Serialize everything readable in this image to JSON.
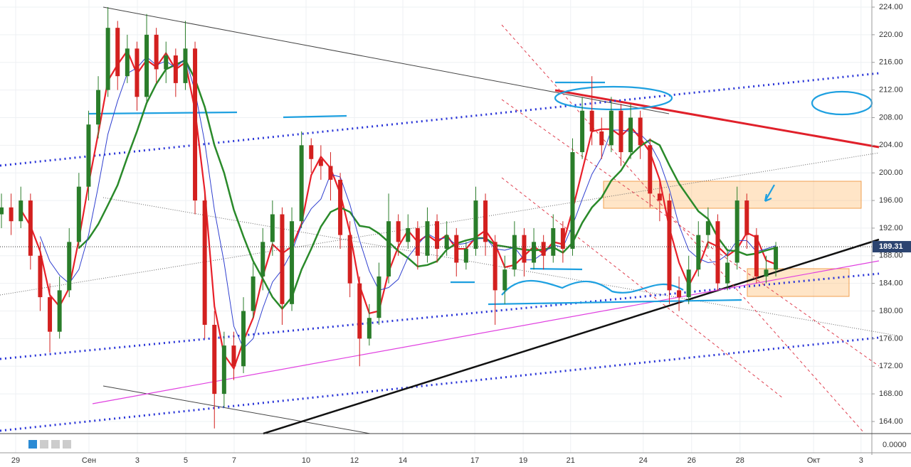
{
  "chart_data": {
    "type": "candlestick",
    "up_color": "#2a7d2a",
    "down_color": "#d3201f",
    "candles": [
      [
        194,
        197,
        192,
        195
      ],
      [
        195,
        197,
        191,
        193
      ],
      [
        193,
        198,
        192,
        196
      ],
      [
        196,
        197,
        186,
        188
      ],
      [
        188,
        190,
        180,
        182
      ],
      [
        182,
        184,
        174,
        177
      ],
      [
        177,
        185,
        176,
        183
      ],
      [
        183,
        192,
        182,
        190
      ],
      [
        190,
        200,
        189,
        198
      ],
      [
        198,
        209,
        196,
        207
      ],
      [
        207,
        214,
        205,
        212
      ],
      [
        212,
        224,
        211,
        221
      ],
      [
        221,
        222,
        212,
        214
      ],
      [
        214,
        220,
        213,
        218
      ],
      [
        218,
        219,
        209,
        211
      ],
      [
        211,
        223,
        210,
        220
      ],
      [
        220,
        221,
        213,
        215
      ],
      [
        215,
        219,
        213,
        217
      ],
      [
        217,
        218,
        211,
        213
      ],
      [
        213,
        222,
        212,
        218
      ],
      [
        218,
        219,
        194,
        196
      ],
      [
        196,
        197,
        176,
        178
      ],
      [
        178,
        180,
        163,
        168
      ],
      [
        168,
        177,
        166,
        175
      ],
      [
        175,
        177,
        170,
        172
      ],
      [
        172,
        182,
        171,
        180
      ],
      [
        180,
        187,
        179,
        185
      ],
      [
        185,
        192,
        183,
        190
      ],
      [
        190,
        196,
        188,
        194
      ],
      [
        194,
        195,
        178,
        181
      ],
      [
        181,
        195,
        180,
        193
      ],
      [
        193,
        206,
        192,
        204
      ],
      [
        204,
        205,
        200,
        202
      ],
      [
        202,
        204,
        199,
        201
      ],
      [
        201,
        203,
        196,
        199
      ],
      [
        199,
        200,
        189,
        191
      ],
      [
        191,
        193,
        182,
        184
      ],
      [
        184,
        185,
        172,
        176
      ],
      [
        176,
        181,
        175,
        179
      ],
      [
        179,
        187,
        178,
        185
      ],
      [
        185,
        197,
        184,
        193
      ],
      [
        193,
        194,
        188,
        190
      ],
      [
        190,
        194,
        189,
        192
      ],
      [
        192,
        193,
        186,
        188
      ],
      [
        188,
        195,
        187,
        193
      ],
      [
        193,
        194,
        187,
        189
      ],
      [
        189,
        193,
        188,
        191
      ],
      [
        191,
        192,
        185,
        187
      ],
      [
        187,
        190,
        186,
        189
      ],
      [
        189,
        198,
        188,
        196
      ],
      [
        196,
        197,
        188,
        190
      ],
      [
        190,
        191,
        178,
        183
      ],
      [
        183,
        188,
        181,
        186
      ],
      [
        186,
        193,
        185,
        191
      ],
      [
        191,
        192,
        185,
        187
      ],
      [
        187,
        192,
        186,
        190
      ],
      [
        190,
        191,
        186,
        188
      ],
      [
        188,
        194,
        187,
        192
      ],
      [
        192,
        193,
        187,
        189
      ],
      [
        189,
        205,
        188,
        203
      ],
      [
        203,
        211,
        202,
        209
      ],
      [
        209,
        214,
        204,
        206
      ],
      [
        206,
        208,
        202,
        204
      ],
      [
        204,
        211,
        203,
        209
      ],
      [
        209,
        210,
        201,
        203
      ],
      [
        203,
        210,
        202,
        208
      ],
      [
        208,
        209,
        202,
        204
      ],
      [
        204,
        205,
        195,
        197
      ],
      [
        197,
        199,
        193,
        196
      ],
      [
        196,
        197,
        181,
        183
      ],
      [
        183,
        185,
        180,
        182
      ],
      [
        182,
        188,
        181,
        186
      ],
      [
        186,
        193,
        185,
        191
      ],
      [
        191,
        195,
        189,
        193
      ],
      [
        193,
        194,
        183,
        184
      ],
      [
        184,
        189,
        183,
        187
      ],
      [
        187,
        198,
        186,
        196
      ],
      [
        196,
        197,
        189,
        191
      ],
      [
        191,
        192,
        184,
        185
      ],
      [
        185,
        188,
        184,
        186
      ],
      [
        186,
        190,
        185,
        189.31
      ]
    ],
    "xlim": [
      -0.15,
      89.92
    ],
    "xticks": [
      {
        "value": 1.47,
        "label": "29"
      },
      {
        "value": 9.04,
        "label": "Сен"
      },
      {
        "value": 14.04,
        "label": "3"
      },
      {
        "value": 19.04,
        "label": "5"
      },
      {
        "value": 24.04,
        "label": "7"
      },
      {
        "value": 31.47,
        "label": "10"
      },
      {
        "value": 36.47,
        "label": "12"
      },
      {
        "value": 41.47,
        "label": "14"
      },
      {
        "value": 48.9,
        "label": "17"
      },
      {
        "value": 53.9,
        "label": "19"
      },
      {
        "value": 58.8,
        "label": "21"
      },
      {
        "value": 66.3,
        "label": "24"
      },
      {
        "value": 71.3,
        "label": "26"
      },
      {
        "value": 76.3,
        "label": "28"
      },
      {
        "value": 83.9,
        "label": "Окт"
      },
      {
        "value": 88.8,
        "label": "3"
      }
    ],
    "ylim": [
      162.25,
      225.03
    ],
    "yticks": [
      {
        "value": 164,
        "label": "164.00"
      },
      {
        "value": 168,
        "label": "168.00"
      },
      {
        "value": 172,
        "label": "172.00"
      },
      {
        "value": 176,
        "label": "176.00"
      },
      {
        "value": 180,
        "label": "180.00"
      },
      {
        "value": 184,
        "label": "184.00"
      },
      {
        "value": 188,
        "label": "188.00"
      },
      {
        "value": 192,
        "label": "192.00"
      },
      {
        "value": 196,
        "label": "196.00"
      },
      {
        "value": 200,
        "label": "200.00"
      },
      {
        "value": 204,
        "label": "204.00"
      },
      {
        "value": 208,
        "label": "208.00"
      },
      {
        "value": 212,
        "label": "212.00"
      },
      {
        "value": 216,
        "label": "216.00"
      },
      {
        "value": 220,
        "label": "220.00"
      },
      {
        "value": 224,
        "label": "224.00"
      }
    ],
    "indicator_label": "0.0000"
  }
}
